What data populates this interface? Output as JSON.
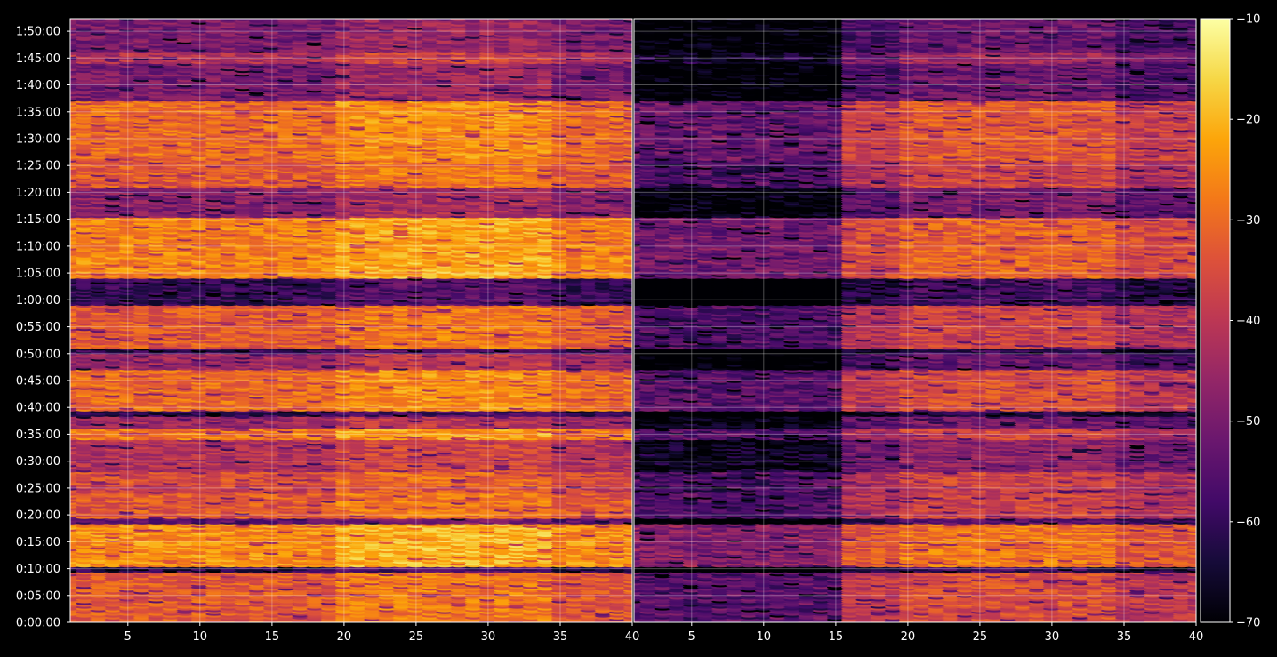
{
  "chart_data": {
    "type": "heatmap",
    "title": "",
    "xlabel": "",
    "ylabel": "",
    "panels": [
      {
        "name": "",
        "xlim": [
          1,
          40
        ]
      },
      {
        "name": "",
        "xlim": [
          1,
          40
        ]
      }
    ],
    "x_ticks": [
      5,
      10,
      15,
      20,
      25,
      30,
      35,
      40
    ],
    "x_tick_labels_left": [
      "5",
      "10",
      "15",
      "20",
      "25",
      "30",
      "35",
      "40"
    ],
    "x_tick_labels_right": [
      "5",
      "10",
      "15",
      "20",
      "25",
      "30",
      "35",
      "40"
    ],
    "y_ticks_seconds": [
      0,
      300,
      600,
      900,
      1200,
      1500,
      1800,
      2100,
      2400,
      2700,
      3000,
      3300,
      3600,
      3900,
      4200,
      4500,
      4800,
      5100,
      5400,
      5700,
      6000,
      6300,
      6600
    ],
    "y_tick_labels": [
      "0:00:00",
      "0:05:00",
      "0:10:00",
      "0:15:00",
      "0:20:00",
      "0:25:00",
      "0:30:00",
      "0:35:00",
      "0:40:00",
      "0:45:00",
      "0:50:00",
      "0:55:00",
      "1:00:00",
      "1:05:00",
      "1:10:00",
      "1:15:00",
      "1:20:00",
      "1:25:00",
      "1:30:00",
      "1:35:00",
      "1:40:00",
      "1:45:00",
      "1:50:00"
    ],
    "ylim": [
      "0:00:00",
      "1:52:20"
    ],
    "grid": true,
    "colormap": "inferno",
    "colorbar": {
      "range": [
        -70,
        -10
      ],
      "ticks": [
        -70,
        -60,
        -50,
        -40,
        -30,
        -20,
        -10
      ],
      "tick_labels": [
        "−70",
        "−60",
        "−50",
        "−40",
        "−30",
        "−20",
        "−10"
      ]
    },
    "row_level_profile": [
      {
        "from": "0:00:00",
        "to": "0:09:30",
        "left": -33,
        "right": -40
      },
      {
        "from": "0:09:30",
        "to": "0:10:30",
        "left": -62,
        "right": -64
      },
      {
        "from": "0:10:30",
        "to": "0:18:30",
        "left": -25,
        "right": -33
      },
      {
        "from": "0:18:30",
        "to": "0:19:30",
        "left": -55,
        "right": -60
      },
      {
        "from": "0:19:30",
        "to": "0:24:00",
        "left": -33,
        "right": -42
      },
      {
        "from": "0:24:00",
        "to": "0:25:30",
        "left": -38,
        "right": -44
      },
      {
        "from": "0:25:30",
        "to": "0:28:00",
        "left": -35,
        "right": -42
      },
      {
        "from": "0:28:00",
        "to": "0:34:00",
        "left": -42,
        "right": -52
      },
      {
        "from": "0:34:00",
        "to": "0:36:00",
        "left": -28,
        "right": -42
      },
      {
        "from": "0:36:00",
        "to": "0:38:30",
        "left": -45,
        "right": -55
      },
      {
        "from": "0:38:30",
        "to": "0:39:30",
        "left": -62,
        "right": -65
      },
      {
        "from": "0:39:30",
        "to": "0:47:00",
        "left": -30,
        "right": -40
      },
      {
        "from": "0:47:00",
        "to": "0:50:00",
        "left": -45,
        "right": -58
      },
      {
        "from": "0:50:00",
        "to": "0:51:00",
        "left": -60,
        "right": -65
      },
      {
        "from": "0:51:00",
        "to": "0:59:00",
        "left": -33,
        "right": -42
      },
      {
        "from": "0:59:00",
        "to": "1:04:00",
        "left": -60,
        "right": -63
      },
      {
        "from": "1:04:00",
        "to": "1:08:30",
        "left": -26,
        "right": -36
      },
      {
        "from": "1:08:30",
        "to": "1:15:30",
        "left": -27,
        "right": -36
      },
      {
        "from": "1:15:30",
        "to": "1:21:00",
        "left": -48,
        "right": -55
      },
      {
        "from": "1:21:00",
        "to": "1:26:00",
        "left": -33,
        "right": -42
      },
      {
        "from": "1:26:00",
        "to": "1:37:00",
        "left": -30,
        "right": -38
      },
      {
        "from": "1:37:00",
        "to": "1:44:00",
        "left": -50,
        "right": -57
      },
      {
        "from": "1:44:00",
        "to": "1:46:00",
        "left": -42,
        "right": -50
      },
      {
        "from": "1:46:00",
        "to": "1:52:20",
        "left": -50,
        "right": -57
      }
    ],
    "column_offsets_note": "",
    "column_level_offset": [
      {
        "from": 1,
        "to": 20,
        "offset": 0
      },
      {
        "from": 20,
        "to": 35,
        "offset": 5
      },
      {
        "from": 35,
        "to": 40,
        "offset": 0
      }
    ],
    "right_panel_quiet_columns": {
      "from": 1,
      "to": 16
    }
  }
}
